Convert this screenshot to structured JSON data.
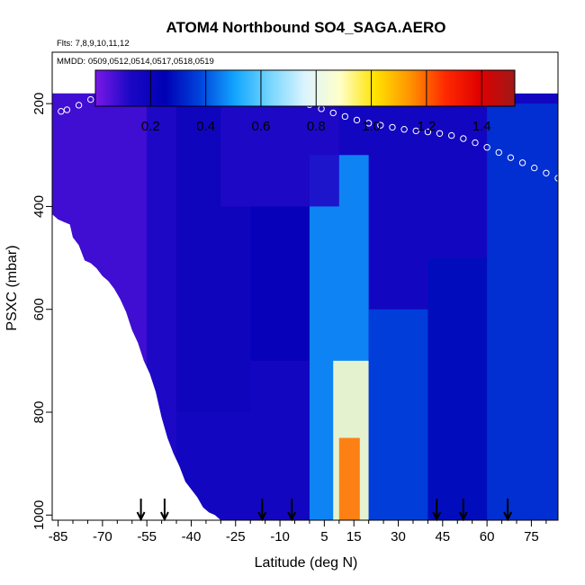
{
  "chart_data": {
    "type": "heatmap",
    "title": "ATOM4 Northbound SO4_SAGA.AERO",
    "flights_note": "Flts: 7,8,9,10,11,12",
    "dates_note": "MMDD: 0509,0512,0514,0517,0518,0519",
    "xlabel": "Latitude (deg N)",
    "ylabel": "PSXC (mbar)",
    "xlim": [
      -87,
      84
    ],
    "ylim": [
      1010,
      100
    ],
    "x_ticks": [
      -85,
      -70,
      -55,
      -40,
      -25,
      -10,
      5,
      15,
      30,
      45,
      60,
      75
    ],
    "x_tick_labels": [
      "-85",
      "-70",
      "-55",
      "-40",
      "-25",
      "-10",
      "5",
      "15",
      "30",
      "45",
      "60",
      "75"
    ],
    "y_ticks": [
      200,
      400,
      600,
      800,
      1000
    ],
    "y_tick_labels": [
      "200",
      "400",
      "600",
      "800",
      "1000"
    ],
    "colorbar": {
      "ticks": [
        0.2,
        0.4,
        0.6,
        0.8,
        1.0,
        1.2,
        1.4
      ],
      "tick_labels": [
        "0.2",
        "0.4",
        "0.6",
        "0.8",
        "1.0",
        "1.2",
        "1.4"
      ],
      "range": [
        0.0,
        1.52
      ],
      "position": "top",
      "colors": [
        "#7a18e8",
        "#1a08c4",
        "#0000b4",
        "#0044dc",
        "#12a6ff",
        "#76d6ff",
        "#dcf4ff",
        "#ffffc8",
        "#ffe300",
        "#ff9400",
        "#ff2a00",
        "#e00000",
        "#a01818"
      ]
    },
    "grid": false,
    "surface_pressure_limit": [
      [
        -87,
        415
      ],
      [
        -85,
        425
      ],
      [
        -83,
        430
      ],
      [
        -81,
        435
      ],
      [
        -80,
        460
      ],
      [
        -78,
        475
      ],
      [
        -76,
        505
      ],
      [
        -74,
        510
      ],
      [
        -72,
        520
      ],
      [
        -70,
        535
      ],
      [
        -68,
        545
      ],
      [
        -66,
        560
      ],
      [
        -64,
        580
      ],
      [
        -62,
        605
      ],
      [
        -60,
        640
      ],
      [
        -58,
        665
      ],
      [
        -56,
        700
      ],
      [
        -54,
        725
      ],
      [
        -52,
        760
      ],
      [
        -50,
        810
      ],
      [
        -48,
        850
      ],
      [
        -46,
        880
      ],
      [
        -44,
        905
      ],
      [
        -42,
        935
      ],
      [
        -40,
        950
      ],
      [
        -38,
        965
      ],
      [
        -36,
        985
      ],
      [
        -34,
        995
      ],
      [
        -32,
        1000
      ],
      [
        -30,
        1010
      ],
      [
        84,
        1010
      ]
    ],
    "observations": [
      [
        -84,
        215,
        0.18
      ],
      [
        -82,
        212,
        0.19
      ],
      [
        -78,
        203,
        0.18
      ],
      [
        -74,
        192,
        0.17
      ],
      [
        -70,
        190,
        0.17
      ],
      [
        -68,
        195,
        0.18
      ],
      [
        -64,
        192,
        0.18
      ],
      [
        -60,
        185,
        0.18
      ],
      [
        -56,
        182,
        0.18
      ],
      [
        -52,
        177,
        0.18
      ],
      [
        -48,
        177,
        0.18
      ],
      [
        -44,
        180,
        0.19
      ],
      [
        -40,
        180,
        0.19
      ],
      [
        -36,
        178,
        0.18
      ],
      [
        -32,
        178,
        0.18
      ],
      [
        -28,
        180,
        0.19
      ],
      [
        -24,
        178,
        0.19
      ],
      [
        -20,
        182,
        0.19
      ],
      [
        -16,
        185,
        0.19
      ],
      [
        -12,
        190,
        0.19
      ],
      [
        -8,
        192,
        0.19
      ],
      [
        -4,
        195,
        0.19
      ],
      [
        0,
        202,
        0.19
      ],
      [
        4,
        210,
        0.2
      ],
      [
        8,
        218,
        0.2
      ],
      [
        12,
        225,
        0.21
      ],
      [
        16,
        232,
        0.22
      ],
      [
        20,
        238,
        0.23
      ],
      [
        24,
        242,
        0.23
      ],
      [
        28,
        246,
        0.24
      ],
      [
        32,
        250,
        0.24
      ],
      [
        36,
        253,
        0.25
      ],
      [
        40,
        255,
        0.26
      ],
      [
        44,
        258,
        0.26
      ],
      [
        48,
        262,
        0.26
      ],
      [
        52,
        268,
        0.26
      ],
      [
        56,
        276,
        0.26
      ],
      [
        60,
        285,
        0.25
      ],
      [
        64,
        295,
        0.24
      ],
      [
        68,
        305,
        0.24
      ],
      [
        72,
        315,
        0.24
      ],
      [
        76,
        325,
        0.24
      ],
      [
        80,
        335,
        0.24
      ],
      [
        84,
        345,
        0.24
      ]
    ],
    "descent_arrows_latitude": [
      -57,
      -49,
      -16,
      -6,
      43,
      52,
      67
    ],
    "regions": [
      {
        "lat": [
          -87,
          -55
        ],
        "psxc": [
          180,
          1010
        ],
        "value": 0.07
      },
      {
        "lat": [
          -55,
          -45
        ],
        "psxc": [
          180,
          1010
        ],
        "value": 0.12
      },
      {
        "lat": [
          -45,
          -20
        ],
        "psxc": [
          180,
          800
        ],
        "value": 0.18
      },
      {
        "lat": [
          -20,
          0
        ],
        "psxc": [
          180,
          700
        ],
        "value": 0.22
      },
      {
        "lat": [
          0,
          20
        ],
        "psxc": [
          300,
          1010
        ],
        "value": 0.48
      },
      {
        "lat": [
          8,
          20
        ],
        "psxc": [
          700,
          1010
        ],
        "value": 0.88
      },
      {
        "lat": [
          10,
          17
        ],
        "psxc": [
          850,
          1010
        ],
        "value": 1.18
      },
      {
        "lat": [
          20,
          40
        ],
        "psxc": [
          600,
          1010
        ],
        "value": 0.38
      },
      {
        "lat": [
          40,
          60
        ],
        "psxc": [
          500,
          1010
        ],
        "value": 0.28
      },
      {
        "lat": [
          60,
          84
        ],
        "psxc": [
          200,
          1010
        ],
        "value": 0.35
      },
      {
        "lat": [
          -30,
          10
        ],
        "psxc": [
          180,
          400
        ],
        "value": 0.12
      }
    ],
    "legend": null
  }
}
